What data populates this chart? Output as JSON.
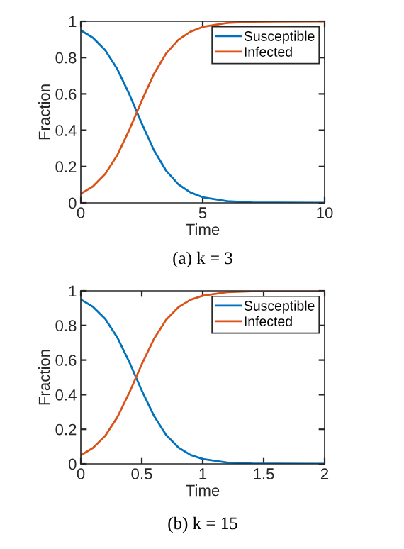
{
  "chart_data": [
    {
      "type": "line",
      "title": "(a) k = 3",
      "xlabel": "Time",
      "ylabel": "Fraction",
      "xlim": [
        0,
        10
      ],
      "ylim": [
        0,
        1
      ],
      "xticks": [
        0,
        5,
        10
      ],
      "yticks": [
        0,
        0.2,
        0.4,
        0.6,
        0.8,
        1
      ],
      "grid": false,
      "legend": "top right",
      "x": [
        0,
        0.5,
        1,
        1.5,
        2,
        2.5,
        3,
        3.5,
        4,
        4.5,
        5,
        6,
        7,
        8,
        10
      ],
      "series": [
        {
          "name": "Susceptible",
          "color": "#0072bd",
          "values": [
            0.95,
            0.909,
            0.841,
            0.736,
            0.595,
            0.437,
            0.29,
            0.177,
            0.102,
            0.057,
            0.031,
            0.009,
            0.002,
            0.001,
            0
          ]
        },
        {
          "name": "Infected",
          "color": "#d95319",
          "values": [
            0.05,
            0.091,
            0.159,
            0.264,
            0.405,
            0.563,
            0.71,
            0.823,
            0.898,
            0.943,
            0.969,
            0.991,
            0.998,
            0.999,
            1
          ]
        }
      ]
    },
    {
      "type": "line",
      "title": "(b) k = 15",
      "xlabel": "Time",
      "ylabel": "Fraction",
      "xlim": [
        0,
        2
      ],
      "ylim": [
        0,
        1
      ],
      "xticks": [
        0,
        0.5,
        1,
        1.5,
        2
      ],
      "yticks": [
        0,
        0.2,
        0.4,
        0.6,
        0.8,
        1
      ],
      "grid": false,
      "legend": "top right",
      "x": [
        0,
        0.1,
        0.2,
        0.3,
        0.4,
        0.5,
        0.6,
        0.7,
        0.8,
        0.9,
        1,
        1.2,
        1.4,
        1.6,
        2
      ],
      "series": [
        {
          "name": "Susceptible",
          "color": "#0072bd",
          "values": [
            0.95,
            0.908,
            0.838,
            0.73,
            0.585,
            0.424,
            0.278,
            0.167,
            0.095,
            0.052,
            0.028,
            0.008,
            0.002,
            0.001,
            0
          ]
        },
        {
          "name": "Infected",
          "color": "#d95319",
          "values": [
            0.05,
            0.092,
            0.162,
            0.27,
            0.415,
            0.576,
            0.722,
            0.833,
            0.905,
            0.948,
            0.972,
            0.992,
            0.998,
            0.999,
            1
          ]
        }
      ]
    }
  ]
}
